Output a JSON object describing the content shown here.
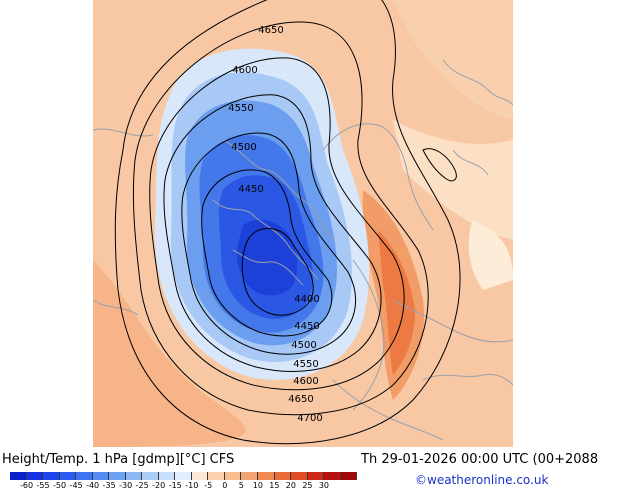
{
  "product": {
    "title": "Height/Temp. 1 hPa [gdmp][°C] CFS",
    "valid_time": "Th 29-01-2026 00:00 UTC (00+2088",
    "copyright": "©weatheronline.co.uk"
  },
  "map": {
    "contour_labels": [
      "4650",
      "4600",
      "4550",
      "4500",
      "4450",
      "4400",
      "4450",
      "4500",
      "4550",
      "4600",
      "4650",
      "4700"
    ]
  },
  "colorbar": {
    "colors": [
      "#0a1ecc",
      "#1430e0",
      "#1e46ee",
      "#2c5cf2",
      "#3e74f4",
      "#548cf4",
      "#6ea2f4",
      "#8cb8f6",
      "#aacef8",
      "#c8e0fa",
      "#e2eefc",
      "#fce8d4",
      "#fad2b0",
      "#f8bc8e",
      "#f4a470",
      "#f08a52",
      "#ea6c38",
      "#e04c24",
      "#d02818",
      "#b81010",
      "#a00808"
    ],
    "tick_labels": [
      "-60",
      "-55",
      "-50",
      "-45",
      "-40",
      "-35",
      "-30",
      "-25",
      "-20",
      "-15",
      "-10",
      "-5",
      "0",
      "5",
      "10",
      "15",
      "20",
      "25",
      "30"
    ]
  }
}
